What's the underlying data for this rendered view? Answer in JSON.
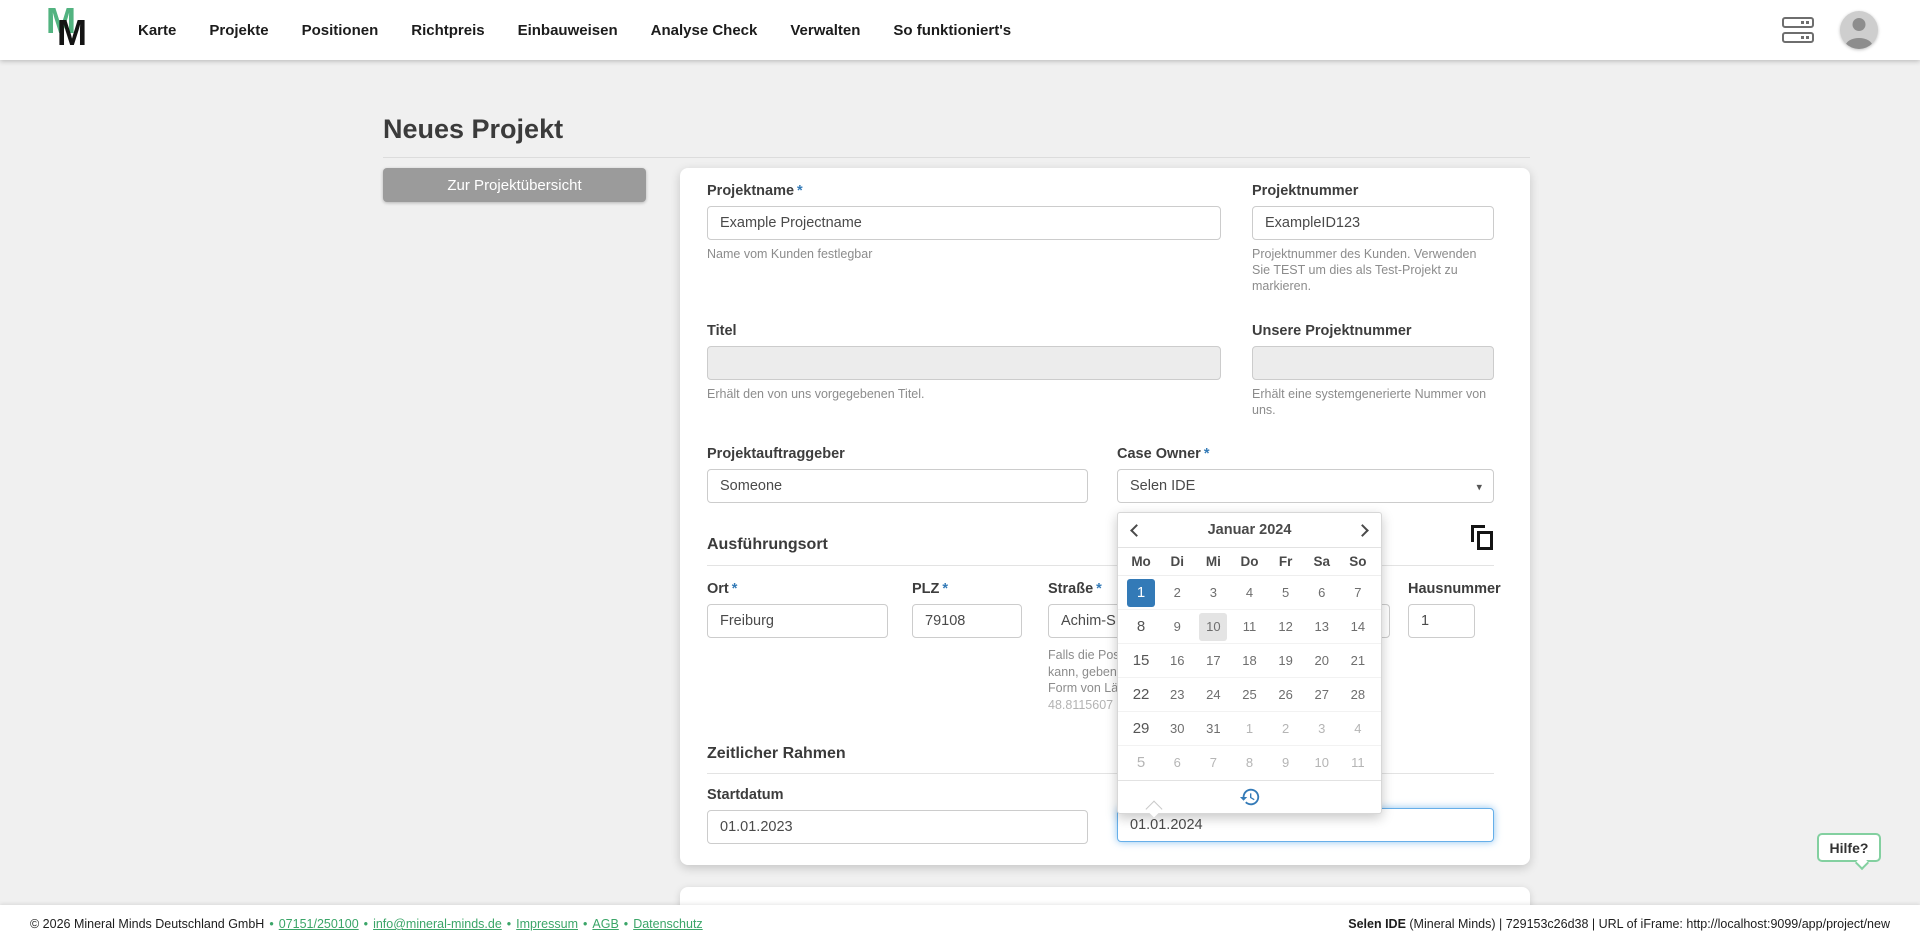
{
  "header": {
    "logo_letter": "M",
    "nav_items": [
      "Karte",
      "Projekte",
      "Positionen",
      "Richtpreis",
      "Einbauweisen",
      "Analyse Check",
      "Verwalten",
      "So funktioniert's"
    ]
  },
  "page": {
    "title": "Neues Projekt",
    "back_button_label": "Zur Projektübersicht"
  },
  "icons": {
    "caret_down": "▾"
  },
  "required_mark": "*",
  "form": {
    "projektname": {
      "label": "Projektname",
      "value": "Example Projectname",
      "helper": "Name vom Kunden festlegbar"
    },
    "projektnummer": {
      "label": "Projektnummer",
      "value": "ExampleID123",
      "helper": "Projektnummer des Kunden. Verwenden Sie TEST um dies als Test-Projekt zu markieren."
    },
    "titel": {
      "label": "Titel",
      "value": "",
      "helper": "Erhält den von uns vorgegebenen Titel."
    },
    "unsere_projektnummer": {
      "label": "Unsere Projektnummer",
      "value": "",
      "helper": "Erhält eine systemgenerierte Nummer von uns."
    },
    "projektauftraggeber": {
      "label": "Projektauftraggeber",
      "value": "Someone"
    },
    "case_owner": {
      "label": "Case Owner",
      "value": "Selen IDE"
    },
    "section_ausfuehrungsort": "Ausführungsort",
    "ort": {
      "label": "Ort",
      "value": "Freiburg"
    },
    "plz": {
      "label": "PLZ",
      "value": "79108"
    },
    "strasse": {
      "label": "Straße",
      "value": "Achim-S",
      "helper_lines": [
        "Falls die Pos",
        "kann, geben",
        "Form von Lä"
      ],
      "helper_coords": "48.8115607"
    },
    "hausnummer": {
      "label": "Hausnummer",
      "value": "1"
    },
    "section_zeitlicher_rahmen": "Zeitlicher Rahmen",
    "startdatum": {
      "label": "Startdatum",
      "value": "01.01.2023"
    },
    "enddatum": {
      "value": "01.01.2024"
    }
  },
  "calendar": {
    "month_title": "Januar 2024",
    "weekdays": [
      "Mo",
      "Di",
      "Mi",
      "Do",
      "Fr",
      "Sa",
      "So"
    ],
    "weeks": [
      [
        {
          "d": "1",
          "state": "selected"
        },
        {
          "d": "2"
        },
        {
          "d": "3"
        },
        {
          "d": "4"
        },
        {
          "d": "5"
        },
        {
          "d": "6"
        },
        {
          "d": "7"
        }
      ],
      [
        {
          "d": "8"
        },
        {
          "d": "9"
        },
        {
          "d": "10",
          "state": "today"
        },
        {
          "d": "11"
        },
        {
          "d": "12"
        },
        {
          "d": "13"
        },
        {
          "d": "14"
        }
      ],
      [
        {
          "d": "15"
        },
        {
          "d": "16"
        },
        {
          "d": "17"
        },
        {
          "d": "18"
        },
        {
          "d": "19"
        },
        {
          "d": "20"
        },
        {
          "d": "21"
        }
      ],
      [
        {
          "d": "22"
        },
        {
          "d": "23"
        },
        {
          "d": "24"
        },
        {
          "d": "25"
        },
        {
          "d": "26"
        },
        {
          "d": "27"
        },
        {
          "d": "28"
        }
      ],
      [
        {
          "d": "29"
        },
        {
          "d": "30"
        },
        {
          "d": "31"
        },
        {
          "d": "1",
          "state": "muted"
        },
        {
          "d": "2",
          "state": "muted"
        },
        {
          "d": "3",
          "state": "muted"
        },
        {
          "d": "4",
          "state": "muted"
        }
      ],
      [
        {
          "d": "5",
          "state": "muted"
        },
        {
          "d": "6",
          "state": "muted"
        },
        {
          "d": "7",
          "state": "muted"
        },
        {
          "d": "8",
          "state": "muted"
        },
        {
          "d": "9",
          "state": "muted"
        },
        {
          "d": "10",
          "state": "muted"
        },
        {
          "d": "11",
          "state": "muted"
        }
      ]
    ]
  },
  "help_button_label": "Hilfe?",
  "footer": {
    "copyright": "© 2026 Mineral Minds Deutschland GmbH",
    "separator": "•",
    "links": [
      "07151/250100",
      "info@mineral-minds.de",
      "Impressum",
      "AGB",
      "Datenschutz"
    ],
    "session_user": "Selen IDE",
    "session_rest": " (Mineral Minds) | 729153c26d38 | URL of iFrame: http://localhost:9099/app/project/new"
  },
  "colors": {
    "accent_green": "#52b380",
    "link_green": "#3ba568",
    "primary_blue": "#337ab7",
    "focus_blue": "#66afe9",
    "background": "#f0f0f0",
    "button_gray": "#9b9b9b"
  }
}
